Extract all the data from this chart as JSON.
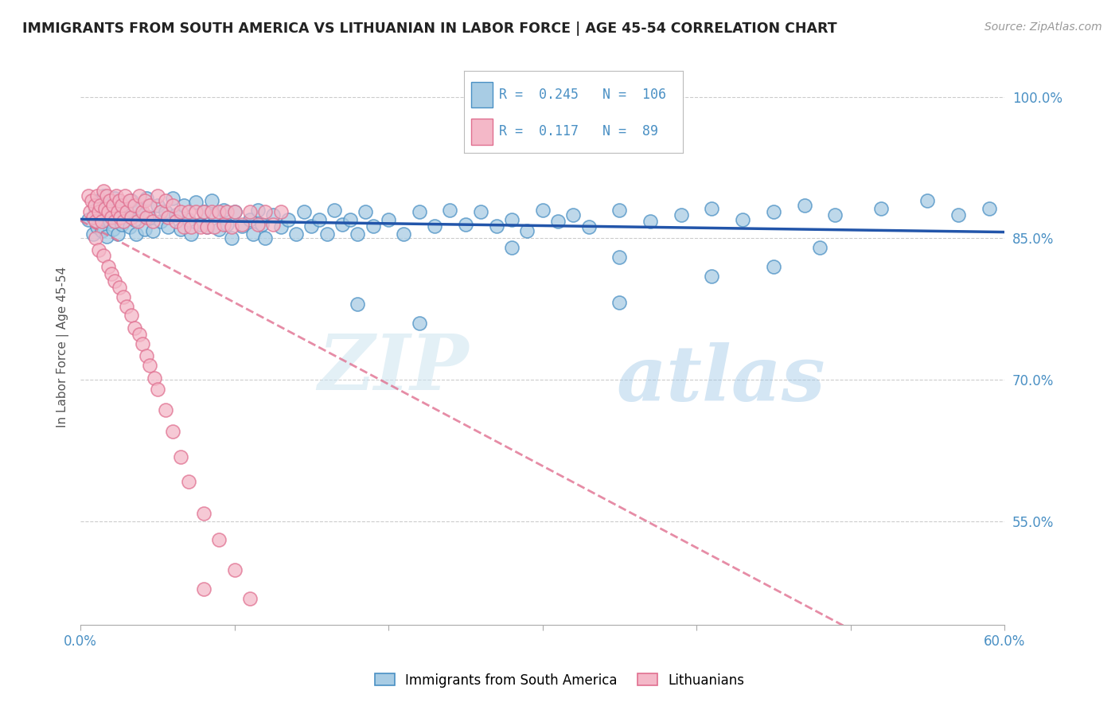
{
  "title": "IMMIGRANTS FROM SOUTH AMERICA VS LITHUANIAN IN LABOR FORCE | AGE 45-54 CORRELATION CHART",
  "source": "Source: ZipAtlas.com",
  "ylabel": "In Labor Force | Age 45-54",
  "xlim": [
    0.0,
    0.6
  ],
  "ylim": [
    0.44,
    1.03
  ],
  "yticks": [
    0.55,
    0.7,
    0.85,
    1.0
  ],
  "ytick_labels": [
    "55.0%",
    "70.0%",
    "85.0%",
    "100.0%"
  ],
  "legend_blue_R": "0.245",
  "legend_blue_N": "106",
  "legend_pink_R": "0.117",
  "legend_pink_N": "89",
  "blue_color": "#a8cce4",
  "blue_edge_color": "#4a90c4",
  "pink_color": "#f4b8c8",
  "pink_edge_color": "#e07090",
  "blue_line_color": "#2255aa",
  "pink_line_color": "#e07090",
  "blue_scatter_x": [
    0.005,
    0.008,
    0.01,
    0.011,
    0.012,
    0.013,
    0.014,
    0.015,
    0.016,
    0.017,
    0.018,
    0.019,
    0.02,
    0.021,
    0.022,
    0.023,
    0.024,
    0.025,
    0.027,
    0.028,
    0.03,
    0.032,
    0.033,
    0.035,
    0.036,
    0.038,
    0.04,
    0.042,
    0.043,
    0.045,
    0.047,
    0.05,
    0.052,
    0.055,
    0.057,
    0.06,
    0.062,
    0.065,
    0.067,
    0.07,
    0.072,
    0.075,
    0.078,
    0.08,
    0.082,
    0.085,
    0.087,
    0.09,
    0.093,
    0.095,
    0.098,
    0.1,
    0.105,
    0.11,
    0.112,
    0.115,
    0.118,
    0.12,
    0.125,
    0.13,
    0.135,
    0.14,
    0.145,
    0.15,
    0.155,
    0.16,
    0.165,
    0.17,
    0.175,
    0.18,
    0.185,
    0.19,
    0.2,
    0.21,
    0.22,
    0.23,
    0.24,
    0.25,
    0.26,
    0.27,
    0.28,
    0.29,
    0.3,
    0.31,
    0.32,
    0.33,
    0.35,
    0.37,
    0.39,
    0.41,
    0.43,
    0.45,
    0.47,
    0.49,
    0.52,
    0.55,
    0.57,
    0.59,
    0.45,
    0.35,
    0.22,
    0.18,
    0.28,
    0.35,
    0.41,
    0.48
  ],
  "blue_scatter_y": [
    0.87,
    0.855,
    0.88,
    0.862,
    0.89,
    0.875,
    0.858,
    0.895,
    0.87,
    0.852,
    0.885,
    0.868,
    0.878,
    0.86,
    0.893,
    0.872,
    0.855,
    0.888,
    0.865,
    0.88,
    0.875,
    0.862,
    0.89,
    0.87,
    0.855,
    0.882,
    0.875,
    0.86,
    0.893,
    0.872,
    0.858,
    0.885,
    0.868,
    0.878,
    0.862,
    0.893,
    0.875,
    0.86,
    0.885,
    0.87,
    0.855,
    0.888,
    0.865,
    0.878,
    0.862,
    0.89,
    0.875,
    0.86,
    0.88,
    0.865,
    0.85,
    0.878,
    0.863,
    0.87,
    0.855,
    0.88,
    0.865,
    0.85,
    0.875,
    0.862,
    0.87,
    0.855,
    0.878,
    0.863,
    0.87,
    0.855,
    0.88,
    0.865,
    0.87,
    0.855,
    0.878,
    0.863,
    0.87,
    0.855,
    0.878,
    0.863,
    0.88,
    0.865,
    0.878,
    0.863,
    0.87,
    0.858,
    0.88,
    0.868,
    0.875,
    0.862,
    0.88,
    0.868,
    0.875,
    0.882,
    0.87,
    0.878,
    0.885,
    0.875,
    0.882,
    0.89,
    0.875,
    0.882,
    0.82,
    0.782,
    0.76,
    0.78,
    0.84,
    0.83,
    0.81,
    0.84
  ],
  "pink_scatter_x": [
    0.005,
    0.006,
    0.007,
    0.008,
    0.009,
    0.01,
    0.011,
    0.012,
    0.013,
    0.014,
    0.015,
    0.016,
    0.017,
    0.018,
    0.019,
    0.02,
    0.021,
    0.022,
    0.023,
    0.024,
    0.025,
    0.026,
    0.027,
    0.028,
    0.029,
    0.03,
    0.032,
    0.033,
    0.035,
    0.037,
    0.038,
    0.04,
    0.042,
    0.043,
    0.045,
    0.047,
    0.05,
    0.052,
    0.055,
    0.057,
    0.06,
    0.062,
    0.065,
    0.067,
    0.07,
    0.072,
    0.075,
    0.078,
    0.08,
    0.082,
    0.085,
    0.087,
    0.09,
    0.093,
    0.095,
    0.098,
    0.1,
    0.105,
    0.11,
    0.115,
    0.12,
    0.125,
    0.13,
    0.01,
    0.012,
    0.015,
    0.018,
    0.02,
    0.022,
    0.025,
    0.028,
    0.03,
    0.033,
    0.035,
    0.038,
    0.04,
    0.043,
    0.045,
    0.048,
    0.05,
    0.055,
    0.06,
    0.065,
    0.07,
    0.08,
    0.09,
    0.1,
    0.11,
    0.08
  ],
  "pink_scatter_y": [
    0.895,
    0.878,
    0.89,
    0.872,
    0.885,
    0.868,
    0.895,
    0.878,
    0.885,
    0.868,
    0.9,
    0.882,
    0.895,
    0.878,
    0.89,
    0.872,
    0.885,
    0.868,
    0.895,
    0.878,
    0.89,
    0.872,
    0.885,
    0.868,
    0.895,
    0.878,
    0.89,
    0.872,
    0.885,
    0.868,
    0.895,
    0.878,
    0.89,
    0.872,
    0.885,
    0.868,
    0.895,
    0.878,
    0.89,
    0.872,
    0.885,
    0.868,
    0.878,
    0.862,
    0.878,
    0.862,
    0.878,
    0.862,
    0.878,
    0.862,
    0.878,
    0.862,
    0.878,
    0.865,
    0.878,
    0.862,
    0.878,
    0.865,
    0.878,
    0.865,
    0.878,
    0.865,
    0.878,
    0.85,
    0.838,
    0.832,
    0.82,
    0.812,
    0.805,
    0.798,
    0.788,
    0.778,
    0.768,
    0.755,
    0.748,
    0.738,
    0.725,
    0.715,
    0.702,
    0.69,
    0.668,
    0.645,
    0.618,
    0.592,
    0.558,
    0.53,
    0.498,
    0.468,
    0.478
  ],
  "watermark_zip": "ZIP",
  "watermark_atlas": "atlas",
  "background_color": "#ffffff"
}
